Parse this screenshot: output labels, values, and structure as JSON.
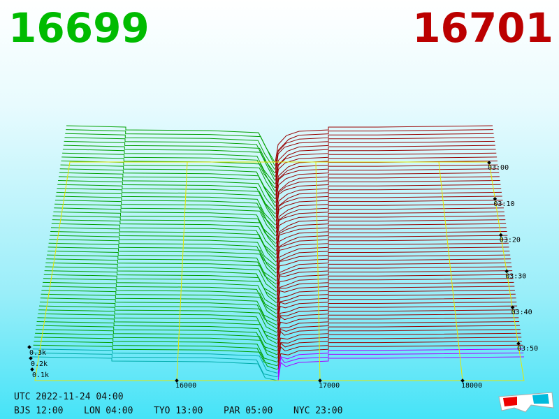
{
  "header": {
    "bid": "16699",
    "ask": "16701"
  },
  "axes": {
    "price_labels": [
      "16000",
      "17000",
      "18000"
    ],
    "time_labels": [
      "03:00",
      "03:10",
      "03:20",
      "03:30",
      "03:40",
      "03:50"
    ],
    "depth_labels": [
      "0.3k",
      "0.2k",
      "0.1k"
    ]
  },
  "footer": {
    "utc": "UTC 2022-11-24 04:00",
    "cities": [
      "BJS 12:00",
      "LON 04:00",
      "TYO 13:00",
      "PAR 05:00",
      "NYC 23:00"
    ]
  }
}
